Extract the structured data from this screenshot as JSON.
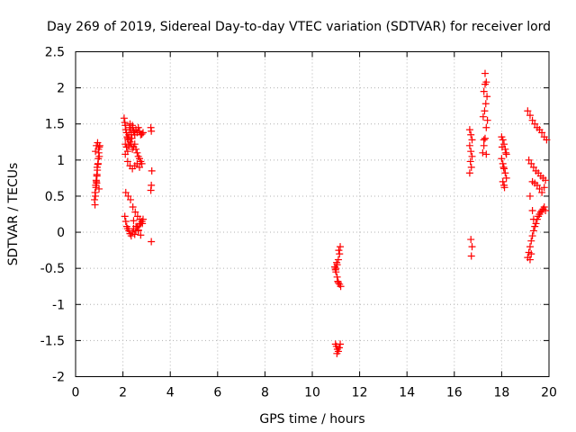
{
  "chart_data": {
    "type": "scatter",
    "title": "Day 269 of 2019, Sidereal Day-to-day VTEC variation (SDTVAR) for receiver lord",
    "xlabel": "GPS time / hours",
    "ylabel": "SDTVAR / TECUs",
    "xlim": [
      0,
      20
    ],
    "ylim": [
      -2,
      2.5
    ],
    "x_ticks": [
      0,
      2,
      4,
      6,
      8,
      10,
      12,
      14,
      16,
      18,
      20
    ],
    "y_ticks": [
      -2,
      -1.5,
      -1,
      -0.5,
      0,
      0.5,
      1,
      1.5,
      2,
      2.5
    ],
    "grid": true,
    "marker": "+",
    "marker_color": "#ff0000",
    "series": [
      {
        "name": "SDTVAR",
        "x": [
          0.82,
          0.84,
          0.86,
          0.88,
          0.9,
          0.92,
          0.94,
          0.96,
          0.98,
          1.0,
          0.85,
          0.9,
          0.95,
          1.0,
          0.88,
          0.93,
          0.97,
          0.8,
          0.82,
          0.87,
          0.91,
          0.99,
          1.02,
          0.84,
          0.89,
          2.05,
          2.08,
          2.1,
          2.12,
          2.15,
          2.18,
          2.2,
          2.22,
          2.25,
          2.28,
          2.3,
          2.32,
          2.35,
          2.38,
          2.4,
          2.42,
          2.45,
          2.48,
          2.5,
          2.55,
          2.6,
          2.65,
          2.7,
          2.75,
          2.8,
          2.85,
          2.1,
          2.15,
          2.2,
          2.25,
          2.3,
          2.35,
          2.4,
          2.45,
          2.5,
          2.55,
          2.6,
          2.65,
          2.7,
          2.75,
          2.8,
          2.1,
          2.2,
          2.3,
          2.4,
          2.5,
          2.6,
          2.7,
          2.08,
          2.12,
          2.16,
          2.2,
          2.25,
          2.3,
          2.35,
          2.4,
          2.45,
          2.5,
          2.55,
          2.6,
          2.65,
          2.7,
          2.75,
          2.8,
          2.85,
          2.12,
          2.22,
          2.32,
          2.42,
          2.52,
          2.62,
          2.72,
          2.82,
          2.45,
          2.55,
          2.65,
          2.75,
          3.18,
          3.2,
          3.22,
          3.2,
          3.18,
          3.2,
          10.95,
          11.0,
          11.05,
          11.1,
          11.15,
          11.2,
          11.0,
          11.05,
          11.1,
          11.15,
          10.98,
          11.08,
          11.12,
          11.18,
          11.03,
          10.98,
          11.02,
          11.06,
          11.1,
          11.14,
          11.18,
          11.04,
          16.65,
          16.7,
          16.75,
          16.65,
          16.7,
          16.75,
          16.68,
          16.72,
          16.65,
          16.7,
          16.75,
          16.72,
          17.2,
          17.25,
          17.3,
          17.35,
          17.4,
          17.22,
          17.28,
          17.33,
          17.38,
          17.25,
          17.3,
          17.35,
          17.3,
          17.25,
          17.35,
          18.0,
          18.05,
          18.1,
          18.15,
          18.2,
          18.0,
          18.05,
          18.1,
          18.15,
          18.2,
          18.05,
          18.1,
          18.12,
          18.08,
          18.02,
          18.18,
          19.1,
          19.2,
          19.3,
          19.4,
          19.5,
          19.6,
          19.7,
          19.8,
          19.9,
          19.15,
          19.25,
          19.35,
          19.45,
          19.55,
          19.65,
          19.75,
          19.85,
          19.3,
          19.4,
          19.5,
          19.6,
          19.7,
          19.2,
          19.8,
          19.1,
          19.15,
          19.2,
          19.25,
          19.3,
          19.35,
          19.4,
          19.45,
          19.5,
          19.55,
          19.6,
          19.65,
          19.7,
          19.75,
          19.8,
          19.85,
          19.2,
          19.3,
          19.25,
          19.35
        ],
        "y": [
          0.38,
          0.5,
          0.62,
          0.7,
          0.78,
          0.86,
          0.94,
          1.02,
          1.1,
          1.18,
          0.65,
          0.8,
          0.95,
          1.05,
          1.2,
          1.24,
          1.15,
          0.45,
          0.55,
          0.72,
          0.9,
          0.6,
          1.2,
          1.12,
          0.68,
          1.58,
          1.52,
          1.48,
          1.42,
          1.38,
          1.32,
          1.3,
          1.28,
          1.35,
          1.45,
          1.5,
          1.42,
          1.35,
          1.3,
          1.48,
          1.45,
          1.4,
          1.38,
          1.35,
          1.42,
          1.38,
          1.45,
          1.4,
          1.35,
          1.36,
          1.38,
          1.22,
          1.18,
          1.12,
          1.2,
          1.25,
          1.22,
          1.15,
          1.18,
          1.22,
          1.15,
          1.1,
          1.05,
          1.02,
          0.98,
          0.95,
          1.08,
          0.98,
          0.92,
          0.88,
          0.92,
          0.95,
          0.9,
          0.22,
          0.15,
          0.08,
          0.05,
          0.02,
          -0.02,
          -0.05,
          0.0,
          0.05,
          -0.03,
          0.02,
          0.08,
          0.03,
          0.1,
          0.12,
          0.15,
          0.18,
          0.55,
          0.5,
          0.45,
          0.35,
          0.28,
          0.22,
          0.18,
          0.12,
          0.16,
          0.08,
          0.02,
          -0.04,
          1.45,
          1.4,
          0.85,
          0.65,
          0.58,
          -0.13,
          -0.48,
          -0.55,
          -0.62,
          -0.7,
          -0.72,
          -0.75,
          -0.5,
          -0.45,
          -0.38,
          -0.3,
          -0.52,
          -0.68,
          -0.25,
          -0.2,
          -0.42,
          -1.55,
          -1.58,
          -1.62,
          -1.65,
          -1.6,
          -1.55,
          -1.68,
          1.42,
          1.35,
          1.28,
          1.2,
          1.12,
          1.05,
          0.98,
          0.9,
          0.82,
          -0.1,
          -0.2,
          -0.33,
          1.1,
          1.2,
          1.3,
          1.45,
          1.55,
          1.6,
          1.68,
          1.78,
          1.88,
          1.95,
          2.05,
          2.08,
          2.2,
          1.28,
          1.08,
          1.32,
          1.28,
          1.22,
          1.15,
          1.08,
          1.02,
          0.95,
          0.88,
          0.82,
          0.75,
          0.7,
          0.65,
          0.62,
          0.9,
          1.18,
          1.1,
          1.68,
          1.62,
          1.55,
          1.5,
          1.45,
          1.42,
          1.38,
          1.32,
          1.28,
          1.0,
          0.95,
          0.9,
          0.85,
          0.82,
          0.78,
          0.75,
          0.72,
          0.7,
          0.68,
          0.65,
          0.6,
          0.55,
          0.5,
          0.62,
          -0.35,
          -0.28,
          -0.2,
          -0.12,
          -0.05,
          0.02,
          0.08,
          0.12,
          0.18,
          0.22,
          0.25,
          0.28,
          0.3,
          0.32,
          0.35,
          0.3,
          -0.38,
          0.3,
          -0.3,
          0.18
        ]
      }
    ]
  }
}
